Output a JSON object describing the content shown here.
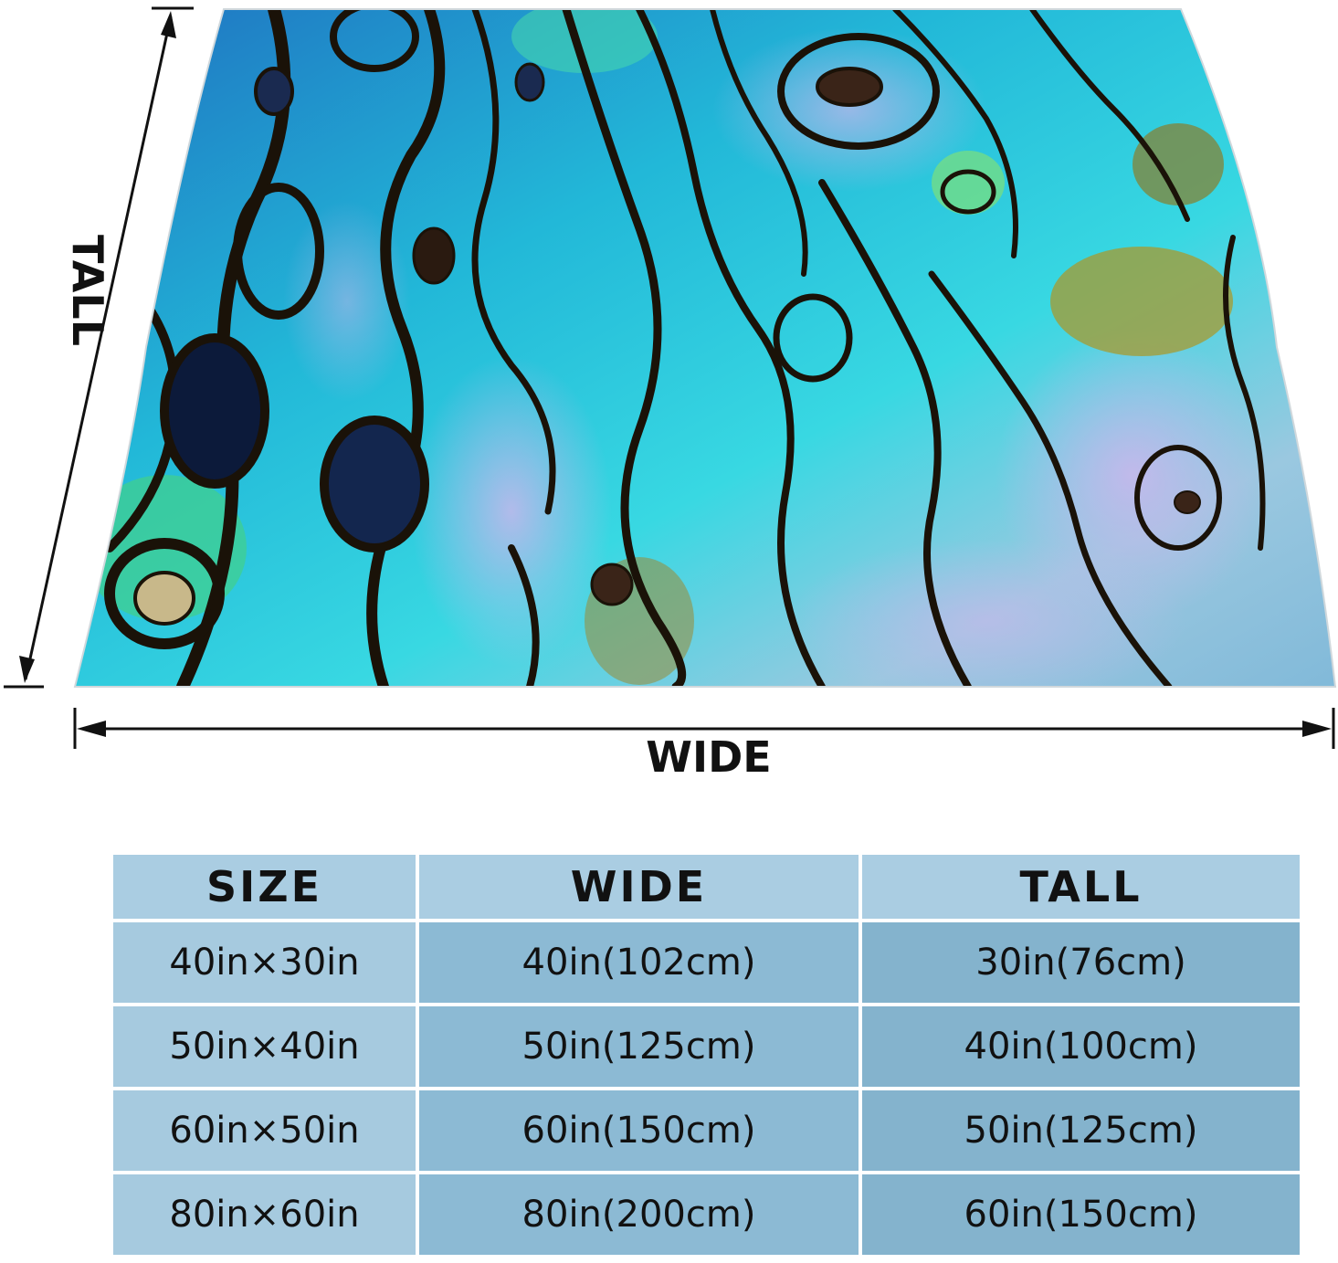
{
  "diagram": {
    "tall_label": "TALL",
    "wide_label": "WIDE",
    "blanket_pattern": "abalone-shell-pattern",
    "colors": {
      "turquoise": "#2fe0e6",
      "deep_blue": "#1f5fb0",
      "lavender": "#b2a6e3",
      "olive": "#a89a2e",
      "dark_outline": "#1a1208",
      "green": "#41d08a"
    }
  },
  "table": {
    "headers": [
      "SIZE",
      "WIDE",
      "TALL"
    ],
    "rows": [
      [
        "40in×30in",
        "40in(102cm)",
        "30in(76cm)"
      ],
      [
        "50in×40in",
        "50in(125cm)",
        "40in(100cm)"
      ],
      [
        "60in×50in",
        "60in(150cm)",
        "50in(125cm)"
      ],
      [
        "80in×60in",
        "80in(200cm)",
        "60in(150cm)"
      ]
    ]
  }
}
